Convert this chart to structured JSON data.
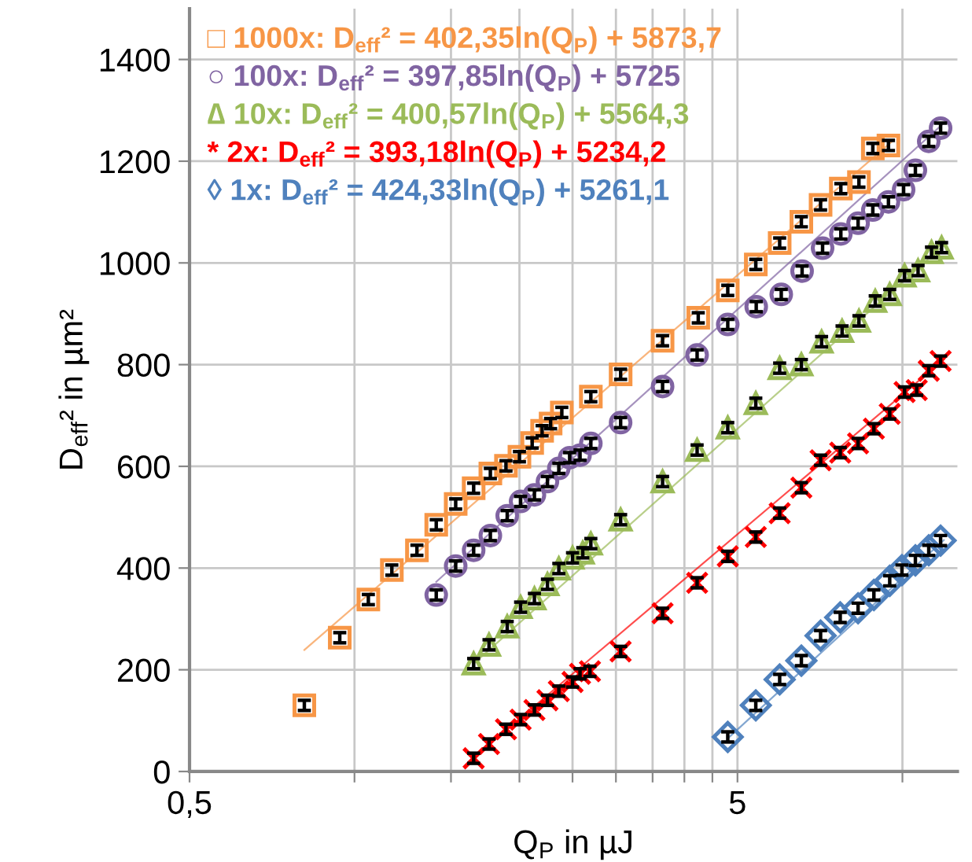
{
  "chart_data": {
    "type": "scatter",
    "xlabel": "Q$_{P}$ in µJ",
    "ylabel": "D$_{eff}$² in µm²",
    "log": "x",
    "xlim": [
      0.5,
      12.6
    ],
    "xticks": [
      {
        "value": 0.5,
        "label": "0,5"
      },
      {
        "value": 1,
        "label": null
      },
      {
        "value": 1.5,
        "label": null
      },
      {
        "value": 2,
        "label": null
      },
      {
        "value": 2.5,
        "label": null
      },
      {
        "value": 3,
        "label": null
      },
      {
        "value": 3.5,
        "label": null
      },
      {
        "value": 4,
        "label": null
      },
      {
        "value": 4.5,
        "label": null
      },
      5,
      {
        "value": 10,
        "label": null
      }
    ],
    "ylim": [
      0,
      1500
    ],
    "yticks": [
      0,
      200,
      400,
      600,
      800,
      1000,
      1200,
      1400
    ],
    "grid": true,
    "legend": "top left",
    "series": [
      {
        "type": "line",
        "color": "#f79646",
        "x": [
          0.81,
          9.6
        ],
        "values": [
          239,
          1240
        ]
      },
      {
        "type": "line",
        "color": "#8064a2",
        "x": [
          1.41,
          11.9
        ],
        "values": [
          373,
          1275
        ]
      },
      {
        "type": "line",
        "color": "#9bbb59",
        "x": [
          1.65,
          11.9
        ],
        "values": [
          212,
          1035
        ]
      },
      {
        "type": "line",
        "color": "#ff0000",
        "x": [
          1.62,
          11.9
        ],
        "values": [
          20,
          810
        ]
      },
      {
        "type": "line",
        "color": "#4f81bd",
        "x": [
          4.8,
          11.9
        ],
        "values": [
          65,
          455
        ]
      },
      {
        "name": "□ 1000x: D$_{eff}$² = 402,35ln(Q$_{P}$) + 5873,7",
        "marker": "square",
        "color": "#f79646",
        "x": [
          0.81,
          0.94,
          1.06,
          1.17,
          1.3,
          1.41,
          1.53,
          1.65,
          1.77,
          1.89,
          2.0,
          2.11,
          2.2,
          2.28,
          2.39,
          2.7,
          3.06,
          3.65,
          4.24,
          4.8,
          5.4,
          5.97,
          6.54,
          7.09,
          7.72,
          8.33,
          8.83,
          9.43
        ],
        "values": [
          130,
          263,
          338,
          396,
          435,
          485,
          526,
          557,
          586,
          601,
          619,
          646,
          670,
          684,
          706,
          737,
          781,
          847,
          892,
          946,
          997,
          1039,
          1081,
          1114,
          1146,
          1159,
          1225,
          1231
        ],
        "errors": [
          10,
          10,
          10,
          10,
          10,
          10,
          10,
          10,
          10,
          10,
          10,
          10,
          10,
          10,
          10,
          10,
          10,
          10,
          10,
          10,
          10,
          10,
          10,
          10,
          10,
          10,
          10,
          10
        ]
      },
      {
        "name": "○ 100x: D$_{eff}$² = 397,85ln(Q$_{P}$) + 5725",
        "marker": "circle",
        "color": "#8064a2",
        "x": [
          1.41,
          1.53,
          1.65,
          1.77,
          1.9,
          2.01,
          2.13,
          2.25,
          2.36,
          2.47,
          2.58,
          2.7,
          3.06,
          3.65,
          4.22,
          4.8,
          5.41,
          6.01,
          6.56,
          7.15,
          7.72,
          8.3,
          8.83,
          9.43,
          10.05,
          10.56,
          11.17,
          11.74
        ],
        "values": [
          347,
          404,
          435,
          464,
          503,
          531,
          544,
          570,
          596,
          617,
          622,
          645,
          686,
          757,
          819,
          879,
          914,
          938,
          984,
          1029,
          1057,
          1078,
          1104,
          1120,
          1144,
          1182,
          1239,
          1265
        ],
        "errors": [
          10,
          10,
          10,
          10,
          10,
          10,
          10,
          10,
          10,
          10,
          10,
          10,
          10,
          10,
          10,
          10,
          10,
          10,
          10,
          10,
          10,
          10,
          10,
          10,
          10,
          10,
          10,
          10
        ]
      },
      {
        "name": "∆ 10x: D$_{eff}$² = 400,57ln(Q$_{P}$) + 5564,3",
        "marker": "triangle",
        "color": "#9bbb59",
        "x": [
          1.65,
          1.76,
          1.9,
          2.01,
          2.13,
          2.25,
          2.36,
          2.5,
          2.61,
          2.7,
          3.06,
          3.65,
          4.22,
          4.8,
          5.4,
          5.97,
          6.54,
          7.12,
          7.76,
          8.33,
          8.92,
          9.48,
          10.09,
          10.68,
          11.3,
          11.79
        ],
        "values": [
          212,
          249,
          285,
          323,
          340,
          368,
          399,
          420,
          430,
          448,
          495,
          570,
          632,
          676,
          724,
          793,
          800,
          845,
          866,
          886,
          925,
          938,
          975,
          985,
          1021,
          1030
        ],
        "errors": [
          10,
          10,
          10,
          10,
          10,
          10,
          10,
          10,
          10,
          10,
          10,
          10,
          10,
          10,
          10,
          10,
          10,
          10,
          10,
          10,
          10,
          10,
          10,
          10,
          10,
          10
        ]
      },
      {
        "name": "* 2x: D$_{eff}$² = 393,18ln(Q$_{P}$) + 5234,2",
        "marker": "cross",
        "color": "#ff0000",
        "x": [
          1.65,
          1.76,
          1.89,
          2.01,
          2.13,
          2.25,
          2.36,
          2.5,
          2.58,
          2.69,
          3.06,
          3.65,
          4.22,
          4.8,
          5.4,
          5.97,
          6.54,
          7.09,
          7.7,
          8.3,
          8.87,
          9.48,
          10.09,
          10.62,
          11.17,
          11.74
        ],
        "values": [
          26,
          54,
          83,
          102,
          121,
          140,
          158,
          176,
          192,
          197,
          236,
          311,
          371,
          423,
          461,
          508,
          558,
          612,
          627,
          645,
          674,
          703,
          746,
          750,
          788,
          807
        ],
        "errors": [
          10,
          10,
          10,
          10,
          10,
          10,
          10,
          10,
          10,
          10,
          10,
          10,
          10,
          10,
          10,
          10,
          10,
          10,
          10,
          10,
          10,
          10,
          10,
          10,
          10,
          10
        ]
      },
      {
        "name": "◊ 1x: D$_{eff}$² = 424,33ln(Q$_{P}$) + 5261,1",
        "marker": "diamond",
        "color": "#4f81bd",
        "x": [
          4.8,
          5.4,
          5.97,
          6.54,
          7.09,
          7.7,
          8.3,
          8.87,
          9.48,
          9.98,
          10.56,
          11.17,
          11.74
        ],
        "values": [
          68,
          130,
          181,
          218,
          267,
          303,
          321,
          347,
          375,
          396,
          415,
          435,
          454
        ],
        "errors": [
          10,
          10,
          10,
          10,
          10,
          10,
          10,
          10,
          10,
          10,
          10,
          10,
          10
        ]
      }
    ]
  }
}
